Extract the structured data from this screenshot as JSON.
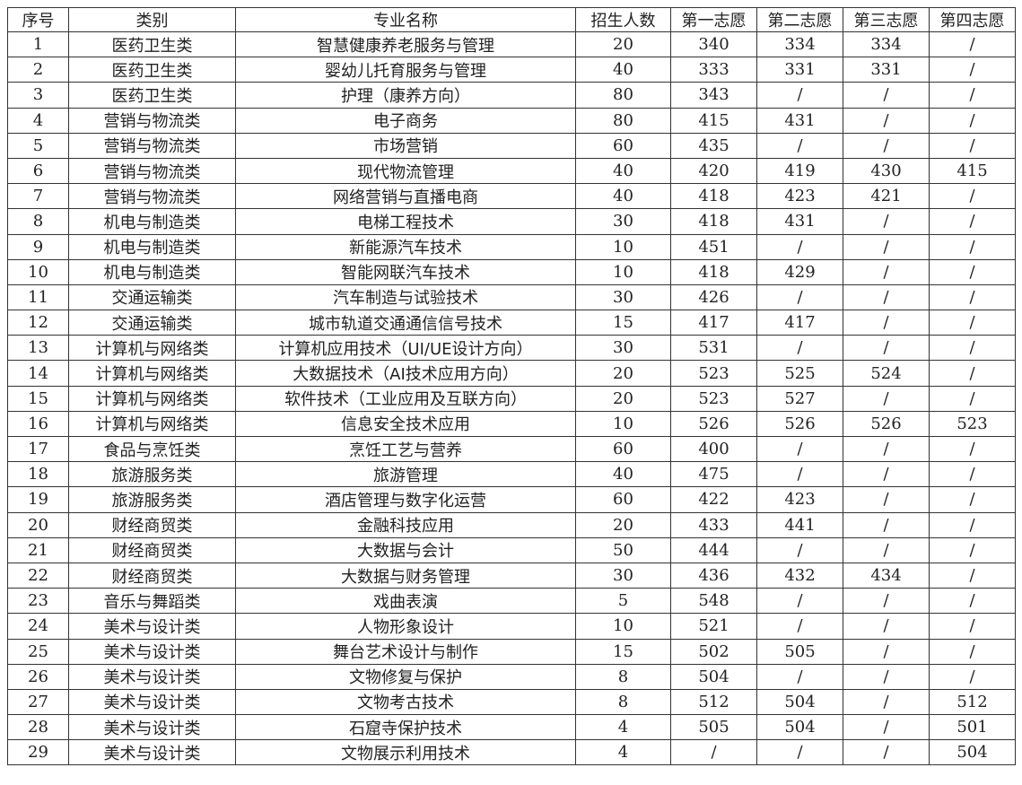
{
  "headers": [
    "序号",
    "类别",
    "专业名称",
    "招生人数",
    "第一志愿",
    "第二志愿",
    "第三志愿",
    "第四志愿"
  ],
  "rows": [
    [
      "1",
      "医药卫生类",
      "智慧健康养老服务与管理",
      "20",
      "340",
      "334",
      "334",
      "/"
    ],
    [
      "2",
      "医药卫生类",
      "婴幼儿托育服务与管理",
      "40",
      "333",
      "331",
      "331",
      "/"
    ],
    [
      "3",
      "医药卫生类",
      "护理（康养方向）",
      "80",
      "343",
      "/",
      "/",
      "/"
    ],
    [
      "4",
      "营销与物流类",
      "电子商务",
      "80",
      "415",
      "431",
      "/",
      "/"
    ],
    [
      "5",
      "营销与物流类",
      "市场营销",
      "60",
      "435",
      "/",
      "/",
      "/"
    ],
    [
      "6",
      "营销与物流类",
      "现代物流管理",
      "40",
      "420",
      "419",
      "430",
      "415"
    ],
    [
      "7",
      "营销与物流类",
      "网络营销与直播电商",
      "40",
      "418",
      "423",
      "421",
      "/"
    ],
    [
      "8",
      "机电与制造类",
      "电梯工程技术",
      "30",
      "418",
      "431",
      "/",
      "/"
    ],
    [
      "9",
      "机电与制造类",
      "新能源汽车技术",
      "10",
      "451",
      "/",
      "/",
      "/"
    ],
    [
      "10",
      "机电与制造类",
      "智能网联汽车技术",
      "10",
      "418",
      "429",
      "/",
      "/"
    ],
    [
      "11",
      "交通运输类",
      "汽车制造与试验技术",
      "30",
      "426",
      "/",
      "/",
      "/"
    ],
    [
      "12",
      "交通运输类",
      "城市轨道交通通信信号技术",
      "15",
      "417",
      "417",
      "/",
      "/"
    ],
    [
      "13",
      "计算机与网络类",
      "计算机应用技术（UI/UE设计方向）",
      "30",
      "531",
      "/",
      "/",
      "/"
    ],
    [
      "14",
      "计算机与网络类",
      "大数据技术（AI技术应用方向）",
      "20",
      "523",
      "525",
      "524",
      "/"
    ],
    [
      "15",
      "计算机与网络类",
      "软件技术（工业应用及互联方向）",
      "20",
      "523",
      "527",
      "/",
      "/"
    ],
    [
      "16",
      "计算机与网络类",
      "信息安全技术应用",
      "10",
      "526",
      "526",
      "526",
      "523"
    ],
    [
      "17",
      "食品与烹饪类",
      "烹饪工艺与营养",
      "60",
      "400",
      "/",
      "/",
      "/"
    ],
    [
      "18",
      "旅游服务类",
      "旅游管理",
      "40",
      "475",
      "/",
      "/",
      "/"
    ],
    [
      "19",
      "旅游服务类",
      "酒店管理与数字化运营",
      "60",
      "422",
      "423",
      "/",
      "/"
    ],
    [
      "20",
      "财经商贸类",
      "金融科技应用",
      "20",
      "433",
      "441",
      "/",
      "/"
    ],
    [
      "21",
      "财经商贸类",
      "大数据与会计",
      "50",
      "444",
      "/",
      "/",
      "/"
    ],
    [
      "22",
      "财经商贸类",
      "大数据与财务管理",
      "30",
      "436",
      "432",
      "434",
      "/"
    ],
    [
      "23",
      "音乐与舞蹈类",
      "戏曲表演",
      "5",
      "548",
      "/",
      "/",
      "/"
    ],
    [
      "24",
      "美术与设计类",
      "人物形象设计",
      "10",
      "521",
      "/",
      "/",
      "/"
    ],
    [
      "25",
      "美术与设计类",
      "舞台艺术设计与制作",
      "15",
      "502",
      "505",
      "/",
      "/"
    ],
    [
      "26",
      "美术与设计类",
      "文物修复与保护",
      "8",
      "504",
      "/",
      "/",
      "/"
    ],
    [
      "27",
      "美术与设计类",
      "文物考古技术",
      "8",
      "512",
      "504",
      "/",
      "512"
    ],
    [
      "28",
      "美术与设计类",
      "石窟寺保护技术",
      "4",
      "505",
      "504",
      "/",
      "501"
    ],
    [
      "29",
      "美术与设计类",
      "文物展示利用技术",
      "4",
      "/",
      "/",
      "/",
      "504"
    ]
  ]
}
